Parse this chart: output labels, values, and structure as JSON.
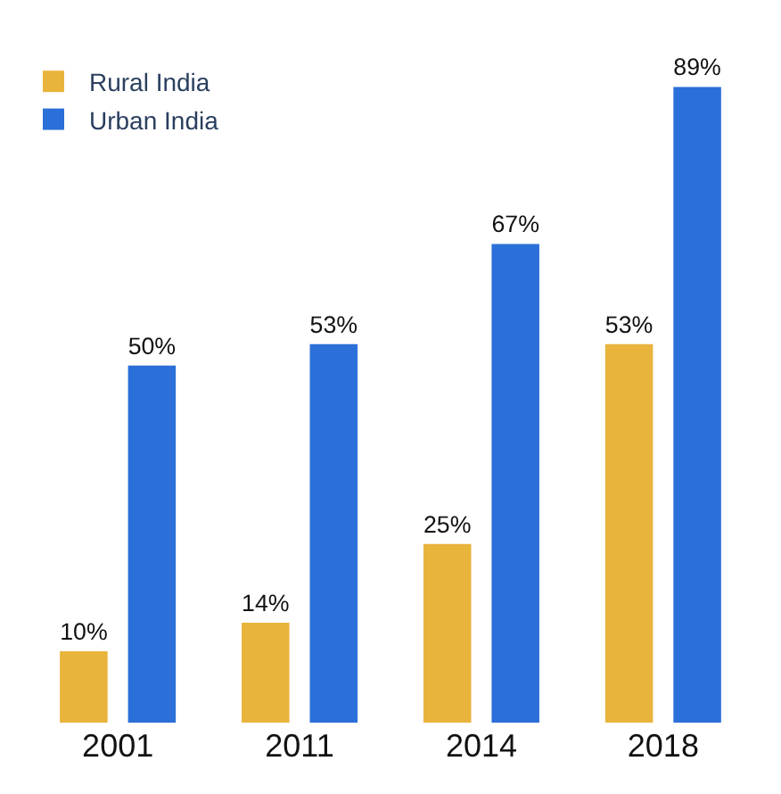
{
  "chart_data": {
    "type": "bar",
    "categories": [
      "2001",
      "2011",
      "2014",
      "2018"
    ],
    "series": [
      {
        "name": "Rural India",
        "color": "#e9b43c",
        "values": [
          10,
          14,
          25,
          53
        ],
        "value_labels": [
          "10%",
          "14%",
          "25%",
          "53%"
        ]
      },
      {
        "name": "Urban India",
        "color": "#2b6fd8",
        "values": [
          50,
          53,
          67,
          89
        ],
        "value_labels": [
          "50%",
          "53%",
          "67%",
          "89%"
        ]
      }
    ],
    "legend": "top left"
  }
}
